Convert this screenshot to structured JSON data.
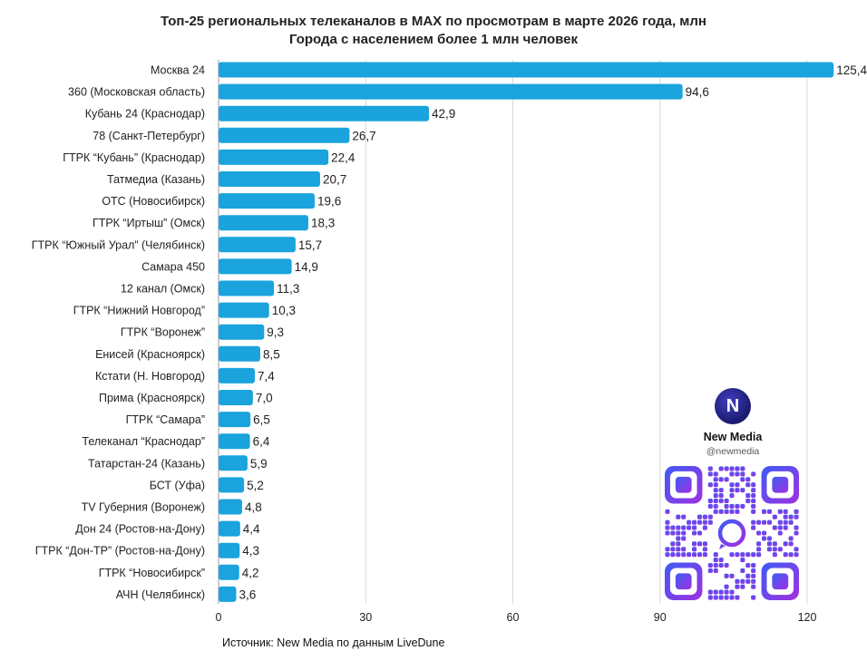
{
  "title": {
    "line1": "Топ-25 региональных телеканалов в MAX по просмотрам в марте 2026 года, млн",
    "line2": "Города с населением более 1 млн человек"
  },
  "source": "Источник: New Media по данным LiveDune",
  "brand": {
    "logo_text": "N",
    "name": "New Media",
    "handle": "@newmedia"
  },
  "colors": {
    "bar": "#1aa3dd",
    "grid": "#d9d9d9",
    "axis": "#999999",
    "qr_from": "#3d5cf5",
    "qr_to": "#a030e0"
  },
  "chart_data": {
    "type": "bar",
    "orientation": "horizontal",
    "title": "Топ-25 региональных телеканалов в MAX по просмотрам в марте 2026 года, млн",
    "subtitle": "Города с населением более 1 млн человек",
    "categories": [
      "Москва 24",
      "360 (Московская область)",
      "Кубань 24 (Краснодар)",
      "78 (Санкт-Петербург)",
      "ГТРК “Кубань” (Краснодар)",
      "Татмедиа (Казань)",
      "ОТС (Новосибирск)",
      "ГТРК “Иртыш” (Омск)",
      "ГТРК “Южный Урал” (Челябинск)",
      "Самара 450",
      "12 канал (Омск)",
      "ГТРК “Нижний Новгород”",
      "ГТРК “Воронеж”",
      "Енисей (Красноярск)",
      "Кстати (Н. Новгород)",
      "Прима (Красноярск)",
      "ГТРК “Самара”",
      "Телеканал “Краснодар”",
      "Татарстан-24 (Казань)",
      "БСТ (Уфа)",
      "TV Губерния (Воронеж)",
      "Дон 24 (Ростов-на-Дону)",
      "ГТРК “Дон-ТР” (Ростов-на-Дону)",
      "ГТРК “Новосибирск”",
      "АЧН (Челябинск)"
    ],
    "values": [
      125.4,
      94.6,
      42.9,
      26.7,
      22.4,
      20.7,
      19.6,
      18.3,
      15.7,
      14.9,
      11.3,
      10.3,
      9.3,
      8.5,
      7.4,
      7.0,
      6.5,
      6.4,
      5.9,
      5.2,
      4.8,
      4.4,
      4.3,
      4.2,
      3.6
    ],
    "value_labels": [
      "125,4",
      "94,6",
      "42,9",
      "26,7",
      "22,4",
      "20,7",
      "19,6",
      "18,3",
      "15,7",
      "14,9",
      "11,3",
      "10,3",
      "9,3",
      "8,5",
      "7,4",
      "7,0",
      "6,5",
      "6,4",
      "5,9",
      "5,2",
      "4,8",
      "4,4",
      "4,3",
      "4,2",
      "3,6"
    ],
    "xlim": [
      0,
      120
    ],
    "xticks": [
      0,
      30,
      60,
      90,
      120
    ],
    "grid": true,
    "legend": "none"
  }
}
